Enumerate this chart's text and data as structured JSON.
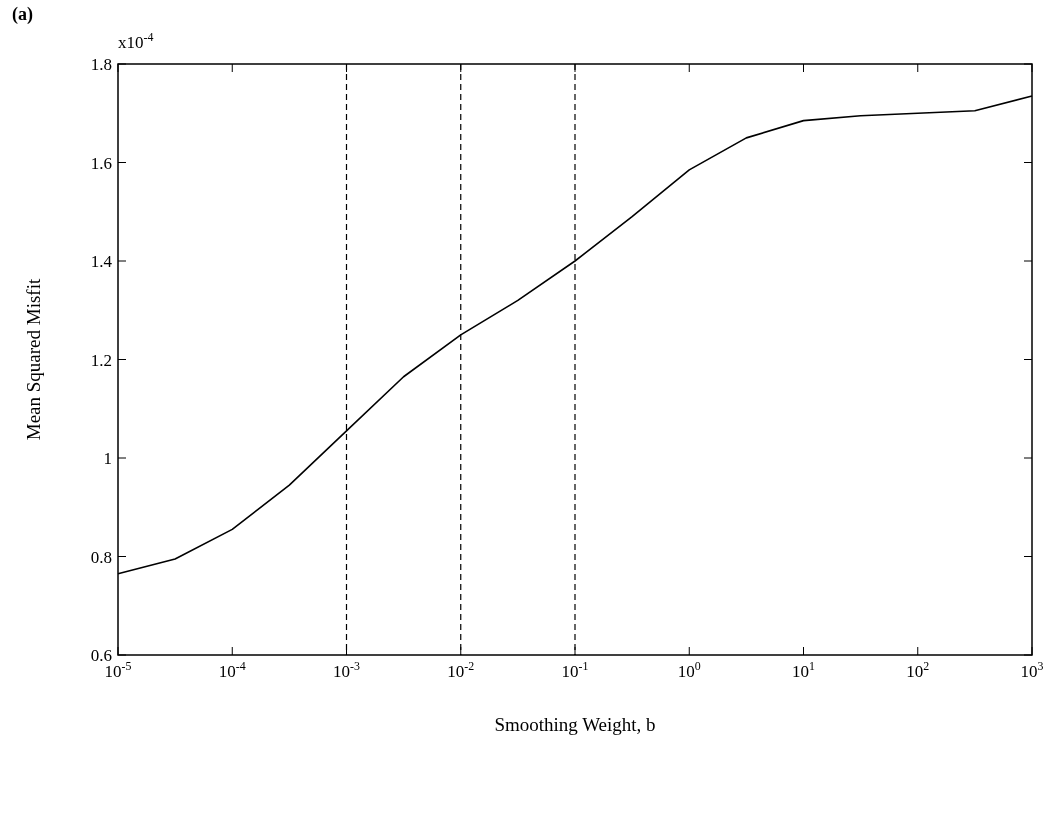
{
  "chart_data": {
    "type": "line",
    "xlabel": "Smoothing Weight, b",
    "ylabel": "Mean Squared Misfit",
    "annotations": [
      "(a)",
      "x10$^{-4}$"
    ],
    "log": "x",
    "grid": false,
    "marker": "none",
    "line_style": "solid",
    "x": [
      1e-05,
      3.16e-05,
      0.0001,
      0.000316,
      0.001,
      0.00316,
      0.01,
      0.0316,
      0.1,
      0.316,
      1,
      3.16,
      10,
      31.6,
      100,
      316,
      1000
    ],
    "series": [
      {
        "color": "#000000",
        "values": [
          0.765,
          0.795,
          0.855,
          0.945,
          1.055,
          1.165,
          1.25,
          1.32,
          1.4,
          1.49,
          1.585,
          1.65,
          1.685,
          1.695,
          1.7,
          1.705,
          1.735
        ]
      }
    ],
    "xlim": [
      1e-05,
      1000
    ],
    "xticks": [
      {
        "value": 1e-05,
        "label": "10$^{-5}$"
      },
      {
        "value": 0.0001,
        "label": "10$^{-4}$"
      },
      {
        "value": 0.001,
        "label": "10$^{-3}$"
      },
      {
        "value": 0.01,
        "label": "10$^{-2}$"
      },
      {
        "value": 0.1,
        "label": "10$^{-1}$"
      },
      {
        "value": 1,
        "label": "10$^{0}$"
      },
      {
        "value": 10,
        "label": "10$^{1}$"
      },
      {
        "value": 100,
        "label": "10$^{2}$"
      },
      {
        "value": 1000,
        "label": "10$^{3}$"
      }
    ],
    "ylim": [
      0.6,
      1.8
    ],
    "yticks": [
      0.6,
      0.8,
      1,
      1.2,
      1.4,
      1.6,
      1.8
    ],
    "ref_lines": [
      {
        "axis": "x",
        "value": 0.001,
        "line_style": "dashed"
      },
      {
        "axis": "x",
        "value": 0.01,
        "line_style": "dashed"
      },
      {
        "axis": "x",
        "value": 0.1,
        "line_style": "dashed"
      }
    ]
  }
}
